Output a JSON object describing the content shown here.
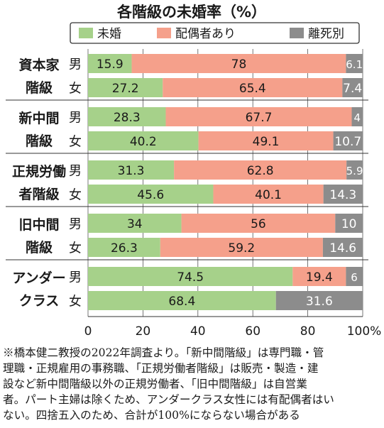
{
  "title": "各階級の未婚率（%）",
  "colors": {
    "未婚": "#a6d18a",
    "配偶者あり": "#f5a08b",
    "離死別": "#8c8c8c",
    "text": "#1a1a1a",
    "grid": "#555555"
  },
  "chart_data": {
    "type": "bar",
    "orientation": "horizontal",
    "stacked": true,
    "title": "各階級の未婚率（%）",
    "legend": {
      "position": "top",
      "entries": [
        "未婚",
        "配偶者あり",
        "離死別"
      ]
    },
    "xlim": [
      0,
      100
    ],
    "xticks": [
      "0",
      "20",
      "40",
      "60",
      "80",
      "100%"
    ],
    "groups": [
      {
        "label_lines": [
          "資本家",
          "階級"
        ],
        "rows": [
          {
            "sex": "男",
            "values": [
              15.9,
              78,
              6.1
            ],
            "labels": [
              "15.9",
              "78",
              "6.1"
            ]
          },
          {
            "sex": "女",
            "values": [
              27.2,
              65.4,
              7.4
            ],
            "labels": [
              "27.2",
              "65.4",
              "7.4"
            ]
          }
        ]
      },
      {
        "label_lines": [
          "新中間",
          "階級"
        ],
        "rows": [
          {
            "sex": "男",
            "values": [
              28.3,
              67.7,
              4
            ],
            "labels": [
              "28.3",
              "67.7",
              "4"
            ]
          },
          {
            "sex": "女",
            "values": [
              40.2,
              49.1,
              10.7
            ],
            "labels": [
              "40.2",
              "49.1",
              "10.7"
            ]
          }
        ]
      },
      {
        "label_lines": [
          "正規労働",
          "者階級"
        ],
        "rows": [
          {
            "sex": "男",
            "values": [
              31.3,
              62.8,
              5.9
            ],
            "labels": [
              "31.3",
              "62.8",
              "5.9"
            ]
          },
          {
            "sex": "女",
            "values": [
              45.6,
              40.1,
              14.3
            ],
            "labels": [
              "45.6",
              "40.1",
              "14.3"
            ]
          }
        ]
      },
      {
        "label_lines": [
          "旧中間",
          "階級"
        ],
        "rows": [
          {
            "sex": "男",
            "values": [
              34,
              56,
              10
            ],
            "labels": [
              "34",
              "56",
              "10"
            ]
          },
          {
            "sex": "女",
            "values": [
              26.3,
              59.2,
              14.6
            ],
            "labels": [
              "26.3",
              "59.2",
              "14.6"
            ]
          }
        ]
      },
      {
        "label_lines": [
          "アンダー",
          "クラス"
        ],
        "rows": [
          {
            "sex": "男",
            "values": [
              74.5,
              19.4,
              6
            ],
            "labels": [
              "74.5",
              "19.4",
              "6"
            ]
          },
          {
            "sex": "女",
            "values": [
              68.4,
              0,
              31.6
            ],
            "labels": [
              "68.4",
              "",
              "31.6"
            ]
          }
        ]
      }
    ]
  },
  "note_lines": [
    "※橋本健二教授の2022年調査より。「新中間階級」は専門職・管",
    "理職・正規雇用の事務職、「正規労働者階級」は販売・製造・建",
    "設など新中間階級以外の正規労働者、「旧中間階級」は自営業",
    "者。パート主婦は除くため、アンダークラス女性には有配偶者はい",
    "ない。四捨五入のため、合計が100%にならない場合がある"
  ]
}
